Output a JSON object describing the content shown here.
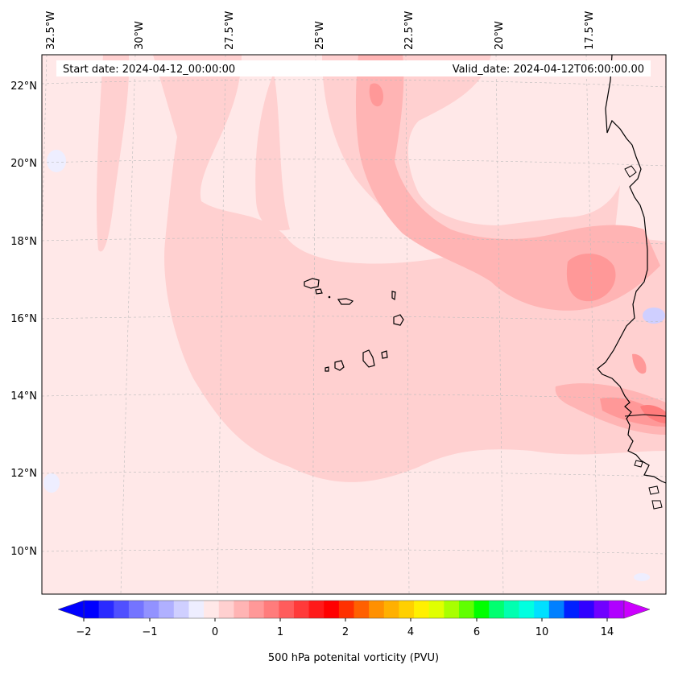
{
  "header": {
    "start_date": "Start date: 2024-04-12_00:00:00",
    "valid_date": "Valid_date: 2024-04-12T06:00:00.00"
  },
  "axes": {
    "lon_labels": [
      "32.5°W",
      "30°W",
      "27.5°W",
      "25°W",
      "22.5°W",
      "20°W",
      "17.5°W"
    ],
    "lat_labels": [
      "22°N",
      "20°N",
      "18°N",
      "16°N",
      "14°N",
      "12°N",
      "10°N"
    ]
  },
  "colorbar": {
    "label": "500 hPa potenital vorticity (PVU)",
    "ticks": [
      "−2",
      "−1",
      "0",
      "1",
      "2",
      "4",
      "6",
      "10",
      "14"
    ],
    "colors": [
      "#0000ff",
      "#2a2aff",
      "#5050ff",
      "#7474ff",
      "#9292ff",
      "#b0b0ff",
      "#cfcfff",
      "#eeeeff",
      "#ffe8e8",
      "#ffd0d0",
      "#ffb4b4",
      "#ff9898",
      "#ff7c7c",
      "#ff5c5c",
      "#ff3a3a",
      "#ff1a1a",
      "#ff0000",
      "#ff3000",
      "#ff6000",
      "#ff9000",
      "#ffb000",
      "#ffd000",
      "#fff000",
      "#e0ff00",
      "#a8ff00",
      "#60ff00",
      "#00ff00",
      "#00ff70",
      "#00ffb0",
      "#00ffe0",
      "#00e0ff",
      "#0080ff",
      "#0020ff",
      "#3000ff",
      "#7000ff",
      "#b000ff"
    ],
    "min_arrow_color": "#0000ff",
    "max_arrow_color": "#cc00ff"
  },
  "map_colors": {
    "background": "#ffe8e8",
    "light": "#ffd0d0",
    "medium": "#ffb4b4",
    "strong": "#ff9898",
    "stronger": "#ff7c7c",
    "negative": "#cfcfff",
    "land_edge": "#000000"
  }
}
